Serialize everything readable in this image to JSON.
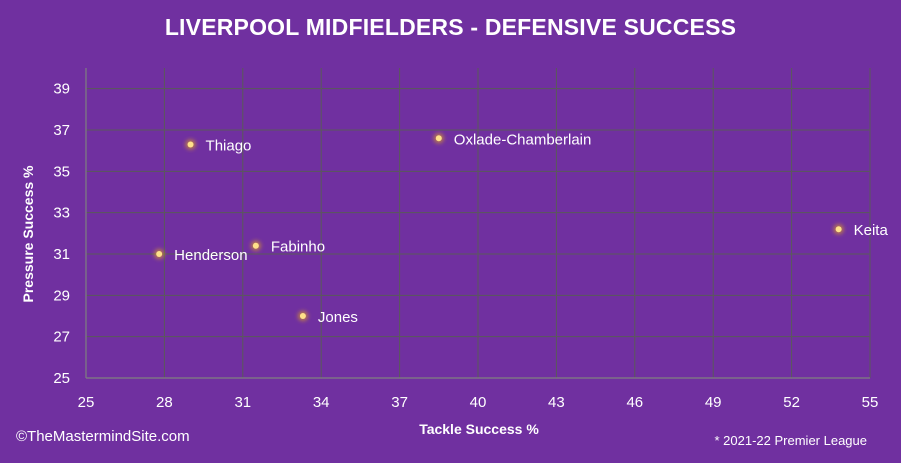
{
  "chart_data": {
    "type": "scatter",
    "title": "LIVERPOOL MIDFIELDERS - DEFENSIVE SUCCESS",
    "xlabel": "Tackle Success %",
    "ylabel": "Pressure Success %",
    "xlim": [
      25,
      55
    ],
    "ylim": [
      25,
      40
    ],
    "xticks": [
      25,
      28,
      31,
      34,
      37,
      40,
      43,
      46,
      49,
      52,
      55
    ],
    "yticks": [
      25,
      27,
      29,
      31,
      33,
      35,
      37,
      39
    ],
    "grid": true,
    "point_color": "#ffc000",
    "points": [
      {
        "label": "Thiago",
        "x": 29.0,
        "y": 36.3
      },
      {
        "label": "Oxlade-Chamberlain",
        "x": 38.5,
        "y": 36.6
      },
      {
        "label": "Keita",
        "x": 53.8,
        "y": 32.2
      },
      {
        "label": "Fabinho",
        "x": 31.5,
        "y": 31.4
      },
      {
        "label": "Henderson",
        "x": 27.8,
        "y": 31.0
      },
      {
        "label": "Jones",
        "x": 33.3,
        "y": 28.0
      }
    ]
  },
  "credit": "©TheMastermindSite.com",
  "footnote": "* 2021-22 Premier League",
  "colors": {
    "background": "#7030a0",
    "gridline": "#5a5a5a",
    "text": "#ffffff"
  }
}
